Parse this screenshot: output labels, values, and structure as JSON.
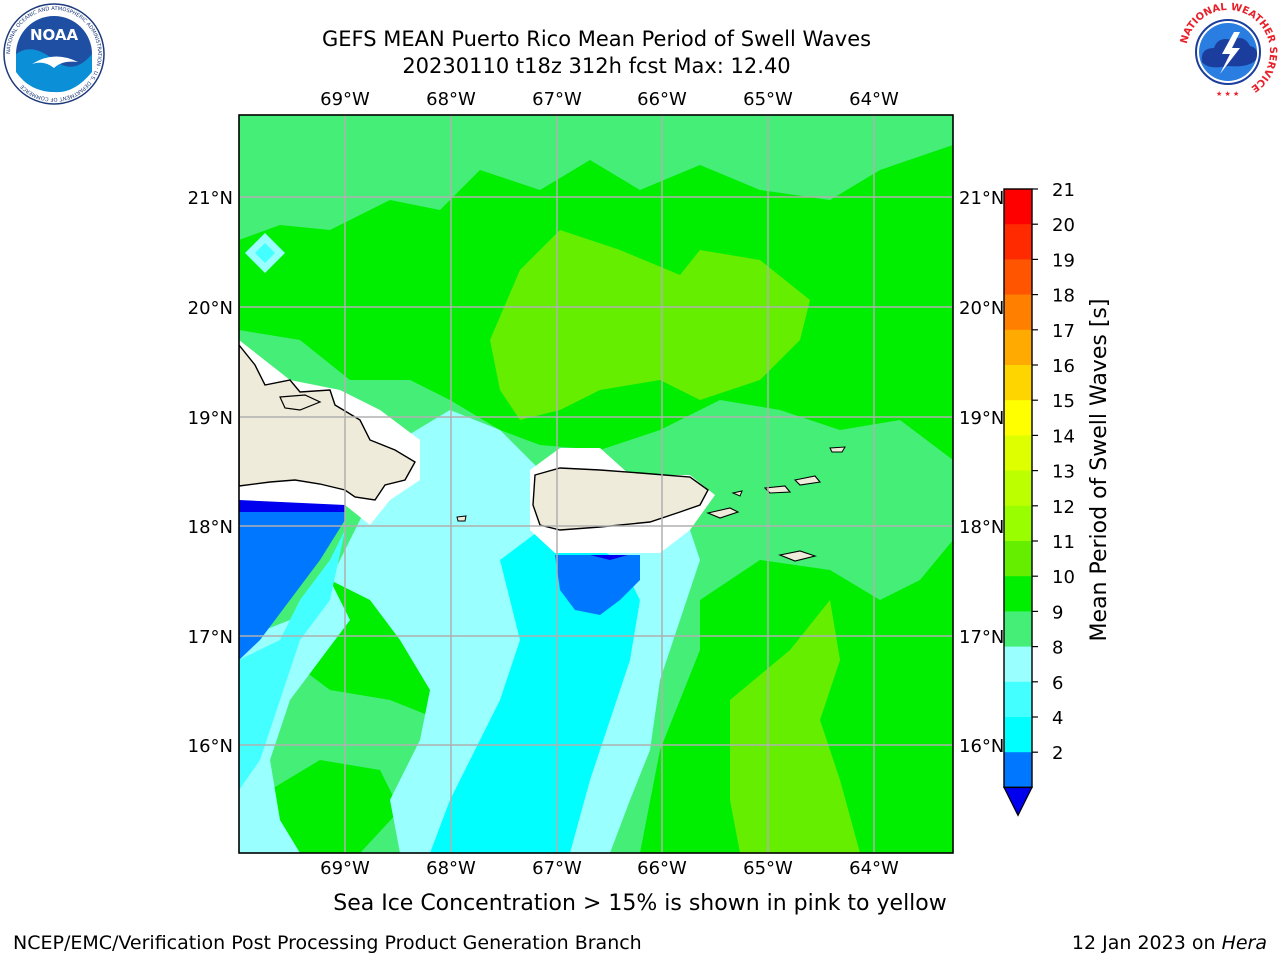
{
  "title": {
    "line1": "GEFS MEAN Puerto Rico Mean Period of Swell Waves",
    "line2": "20230110 t18z 312h fcst   Max: 12.40"
  },
  "map": {
    "lon_labels": [
      "69°W",
      "68°W",
      "67°W",
      "66°W",
      "65°W",
      "64°W"
    ],
    "lat_labels": [
      "21°N",
      "20°N",
      "19°N",
      "18°N",
      "17°N",
      "16°N"
    ],
    "colors": {
      "ocean_green": "#00ee00",
      "light_green": "#66ee00",
      "pale_green": "#44ee77",
      "light_cyan": "#99ffff",
      "cyan": "#00ffff",
      "mid_cyan": "#44ffff",
      "blue": "#0077ff",
      "dark_blue": "#0000ee",
      "land": "#efebda",
      "grid": "#b0b0b0"
    }
  },
  "colorbar": {
    "label": "Mean Period of Swell Waves [s]",
    "ticks": [
      "21",
      "20",
      "19",
      "18",
      "17",
      "16",
      "15",
      "14",
      "13",
      "12",
      "11",
      "10",
      "9",
      "8",
      "6",
      "4",
      "2"
    ],
    "colors": [
      "#ff0000",
      "#ff2a00",
      "#ff5500",
      "#ff8000",
      "#ffaa00",
      "#ffd500",
      "#ffff00",
      "#ddff00",
      "#bbff00",
      "#99ff00",
      "#66ee00",
      "#00ee00",
      "#44ee77",
      "#99ffff",
      "#44ffff",
      "#00ffff",
      "#0077ff"
    ],
    "extend_color": "#0000ee"
  },
  "footer": {
    "note": "Sea Ice Concentration > 15% is shown in pink to yellow",
    "credit": "NCEP/EMC/Verification Post Processing Product Generation Branch",
    "date": "12 Jan 2023 on ",
    "machine": "Hera"
  },
  "logos": {
    "noaa_text": "NOAA",
    "noaa_ring": "NATIONAL OCEANIC AND ATMOSPHERIC ADMINISTRATION · U.S. DEPARTMENT OF COMMERCE",
    "nws_ring": "NATIONAL WEATHER SERVICE"
  }
}
